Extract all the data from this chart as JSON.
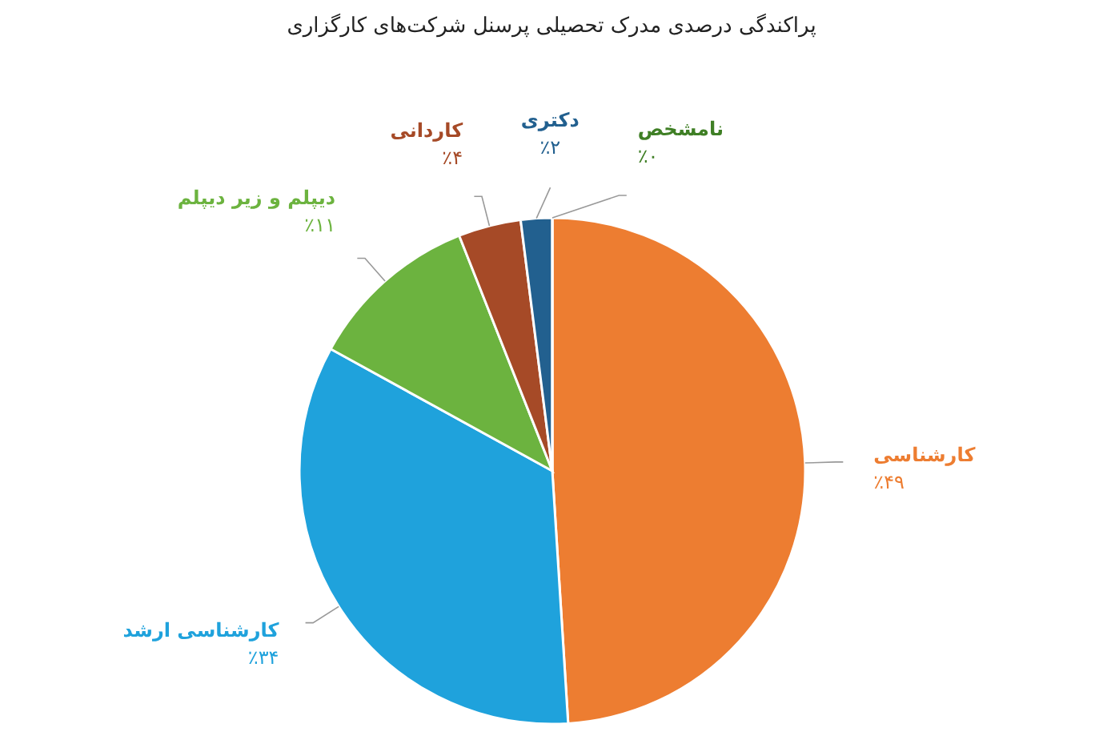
{
  "chart_data": {
    "type": "pie",
    "title": "پراکندگی درصدی مدرک تحصیلی پرسنل شرکت‌های کارگزاری",
    "categories": [
      "کارشناسی",
      "کارشناسی ارشد",
      "دیپلم و زیر دیپلم",
      "کاردانی",
      "دکتری",
      "نامشخص"
    ],
    "values": [
      49,
      34,
      11,
      4,
      2,
      0
    ],
    "colors": [
      "#ed7d31",
      "#1fa2dc",
      "#6cb33f",
      "#a64a27",
      "#22608f",
      "#3f7f25"
    ],
    "value_labels": [
      "٪۴۹",
      "٪۳۴",
      "٪۱۱",
      "٪۴",
      "٪۲",
      "٪۰"
    ]
  }
}
